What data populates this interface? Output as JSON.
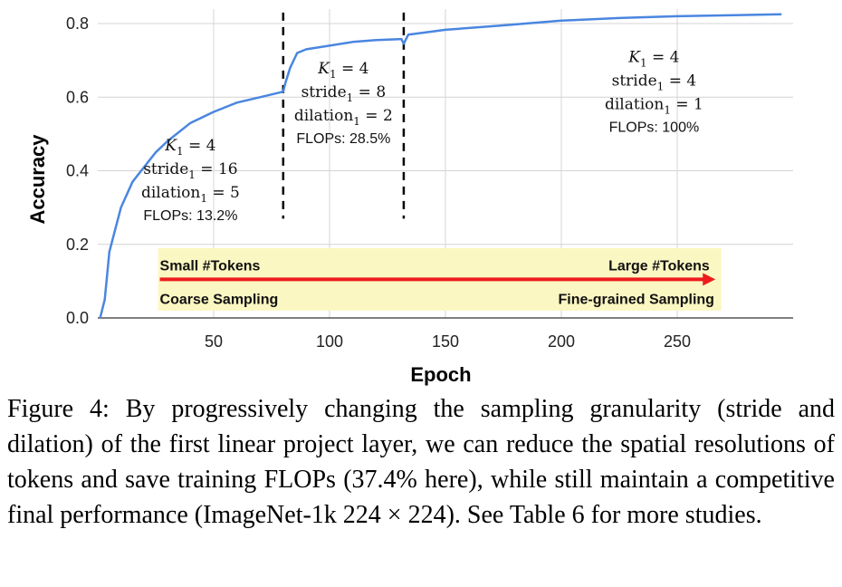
{
  "chart_data": {
    "type": "line",
    "title": "",
    "xlabel": "Epoch",
    "ylabel": "Accuracy",
    "xlim": [
      0,
      300
    ],
    "ylim": [
      0,
      0.8
    ],
    "x_ticks": [
      50,
      100,
      150,
      200,
      250
    ],
    "y_ticks": [
      0.0,
      0.2,
      0.4,
      0.6,
      0.8
    ],
    "y_tick_labels": [
      "0.0",
      "0.2",
      "0.4",
      "0.6",
      "0.8"
    ],
    "grid": "vertical and horizontal",
    "line_color": "#4a86e0",
    "series": [
      {
        "x": [
          1,
          3,
          5,
          10,
          15,
          20,
          25,
          30,
          40,
          50,
          60,
          70,
          80,
          81,
          83,
          86,
          90,
          100,
          110,
          120,
          131,
          132,
          134,
          140,
          150,
          175,
          200,
          225,
          250,
          275,
          295
        ],
        "values": [
          0.0,
          0.05,
          0.18,
          0.3,
          0.37,
          0.41,
          0.45,
          0.48,
          0.53,
          0.56,
          0.585,
          0.6,
          0.615,
          0.64,
          0.68,
          0.72,
          0.73,
          0.74,
          0.75,
          0.755,
          0.758,
          0.745,
          0.77,
          0.775,
          0.783,
          0.795,
          0.808,
          0.815,
          0.82,
          0.823,
          0.825
        ]
      }
    ],
    "phase_boundaries": [
      80,
      132
    ],
    "phases": [
      {
        "k": "K",
        "k_sub": "1",
        "k_value": "= 4",
        "stride_label": "stride",
        "stride_sub": "1",
        "stride_value": "= 16",
        "dilation_label": "dilation",
        "dilation_sub": "1",
        "dilation_value": "= 5",
        "flops": "FLOPs: 13.2%"
      },
      {
        "k": "K",
        "k_sub": "1",
        "k_value": "= 4",
        "stride_label": "stride",
        "stride_sub": "1",
        "stride_value": "= 8",
        "dilation_label": "dilation",
        "dilation_sub": "1",
        "dilation_value": "= 2",
        "flops": "FLOPs: 28.5%"
      },
      {
        "k": "K",
        "k_sub": "1",
        "k_value": "= 4",
        "stride_label": "stride",
        "stride_sub": "1",
        "stride_value": "= 4",
        "dilation_label": "dilation",
        "dilation_sub": "1",
        "dilation_value": "= 1",
        "flops": "FLOPs: 100%"
      }
    ],
    "band": {
      "top_left": "Small #Tokens",
      "top_right": "Large #Tokens",
      "bottom_left": "Coarse Sampling",
      "bottom_right": "Fine-grained Sampling",
      "band_color": "#fbf7c2",
      "arrow_color": "#ee1c1c"
    }
  },
  "caption": "Figure 4: By progressively changing the sampling granularity (stride and dilation) of the first linear project layer, we can re­duce the spatial resolutions of tokens and save training FLOPs (37.4% here), while still maintain a competitive final perfor­mance (ImageNet-1k 224 × 224). See Table 6 for more studies."
}
